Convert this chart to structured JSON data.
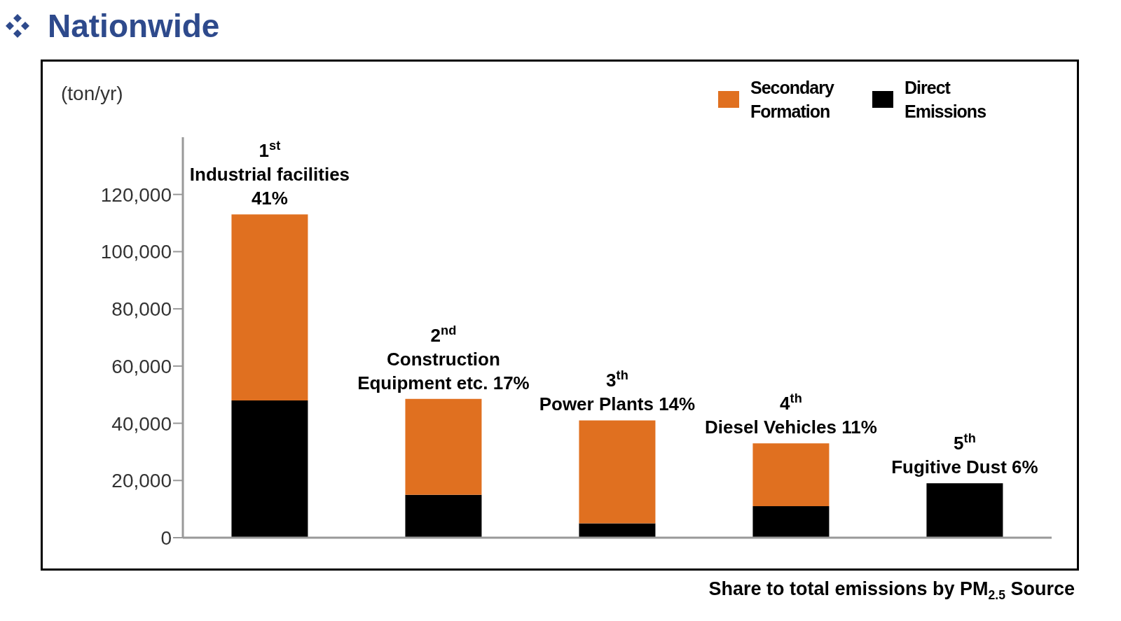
{
  "chart_data": {
    "type": "bar",
    "stacked": true,
    "title": "Nationwide",
    "ylabel": "(ton/yr)",
    "categories": [
      null,
      null,
      null,
      null,
      null
    ],
    "series": [
      {
        "name": "Direct Emissions",
        "color": "#000000",
        "values": [
          48000,
          15000,
          5000,
          11000,
          19000
        ]
      },
      {
        "name": "Secondary Formation",
        "color": "#e07020",
        "values": [
          65000,
          33500,
          36000,
          22000,
          0
        ]
      }
    ],
    "ylim": [
      0,
      140000
    ],
    "yticks": [
      {
        "value": 0,
        "label": "0"
      },
      {
        "value": 20000,
        "label": "20,000"
      },
      {
        "value": 40000,
        "label": "40,000"
      },
      {
        "value": 60000,
        "label": "60,000"
      },
      {
        "value": 80000,
        "label": "80,000"
      },
      {
        "value": 100000,
        "label": "100,000"
      },
      {
        "value": 120000,
        "label": "120,000"
      }
    ],
    "tick_labels": "y",
    "grid": false,
    "legend": "top right",
    "annotations": [
      "1$^{st}$\nIndustrial facilities\n41%",
      "2$^{nd}$\nConstruction\nEquipment etc. 17%",
      "3$^{th}$\nPower Plants 14%",
      "4$^{th}$\nDiesel Vehicles 11%",
      "5$^{th}$\nFugitive Dust 6%",
      "Share to total emissions by PM$_{2.5}$ Source"
    ]
  }
}
